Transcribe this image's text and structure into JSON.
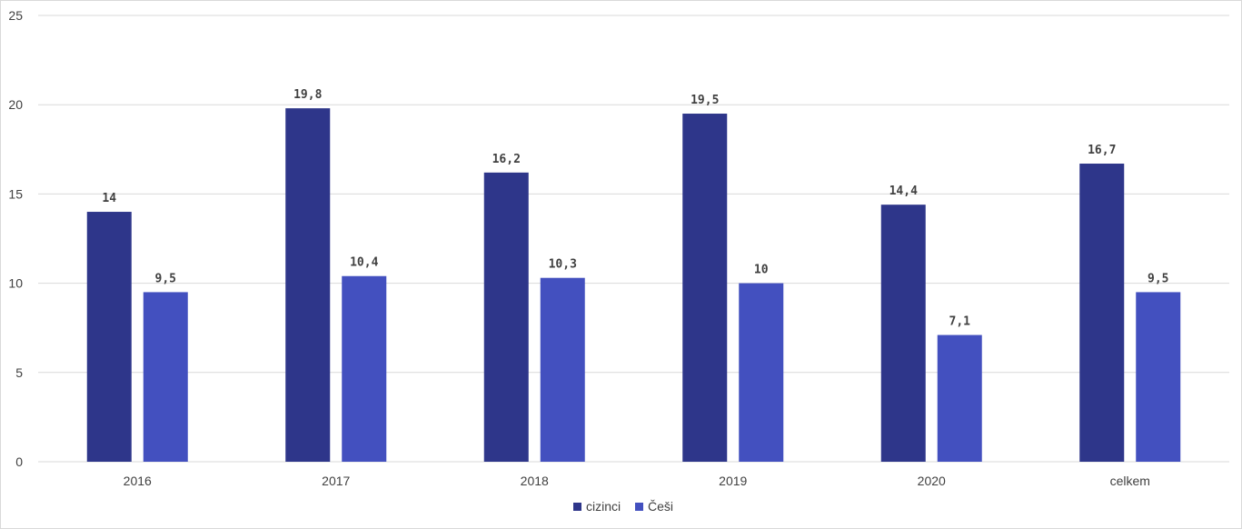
{
  "chart_data": {
    "type": "bar",
    "categories": [
      "2016",
      "2017",
      "2018",
      "2019",
      "2020",
      "celkem"
    ],
    "series": [
      {
        "name": "cizinci",
        "color": "#2e368a",
        "values": [
          14,
          19.8,
          16.2,
          19.5,
          14.4,
          16.7
        ],
        "labels": [
          "14",
          "19,8",
          "16,2",
          "19,5",
          "14,4",
          "16,7"
        ]
      },
      {
        "name": "Češi",
        "color": "#4350bf",
        "values": [
          9.5,
          10.4,
          10.3,
          10,
          7.1,
          9.5
        ],
        "labels": [
          "9,5",
          "10,4",
          "10,3",
          "10",
          "7,1",
          "9,5"
        ]
      }
    ],
    "ylim": [
      0,
      25
    ],
    "yticks": [
      "0",
      "5",
      "10",
      "15",
      "20",
      "25"
    ],
    "grid": true,
    "legend_position": "bottom",
    "title": "",
    "xlabel": "",
    "ylabel": ""
  }
}
